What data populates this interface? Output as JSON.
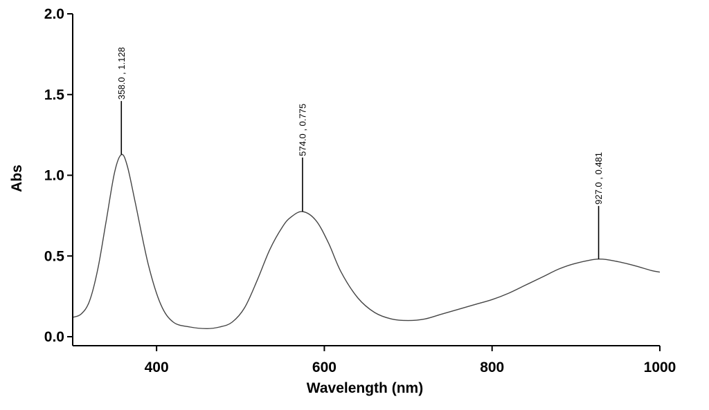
{
  "chart_data": {
    "type": "line",
    "xlabel": "Wavelength (nm)",
    "ylabel": "Abs",
    "xlim": [
      300,
      1000
    ],
    "ylim": [
      0.0,
      2.0
    ],
    "x_ticks": [
      "400",
      "600",
      "800",
      "1000"
    ],
    "y_ticks": [
      "0.0",
      "0.5",
      "1.0",
      "1.5",
      "2.0"
    ],
    "grid": false,
    "series": [
      {
        "x": [
          300,
          310,
          320,
          330,
          340,
          350,
          358,
          365,
          375,
          390,
          405,
          420,
          440,
          460,
          475,
          490,
          505,
          520,
          535,
          550,
          560,
          574,
          590,
          605,
          620,
          640,
          660,
          680,
          700,
          720,
          740,
          760,
          780,
          800,
          820,
          840,
          860,
          880,
          900,
          927,
          950,
          970,
          990,
          1000
        ],
        "y": [
          0.12,
          0.14,
          0.22,
          0.42,
          0.72,
          1.02,
          1.128,
          1.06,
          0.82,
          0.45,
          0.2,
          0.09,
          0.06,
          0.05,
          0.06,
          0.09,
          0.18,
          0.35,
          0.54,
          0.68,
          0.74,
          0.775,
          0.72,
          0.58,
          0.4,
          0.24,
          0.15,
          0.11,
          0.1,
          0.11,
          0.14,
          0.17,
          0.2,
          0.23,
          0.27,
          0.32,
          0.37,
          0.42,
          0.455,
          0.481,
          0.465,
          0.44,
          0.41,
          0.4
        ]
      }
    ],
    "annotations": [
      {
        "text": "358.0 , 1.128",
        "x": 358,
        "y": 1.128,
        "line_top": 1.46
      },
      {
        "text": "574.0 , 0.775",
        "x": 574,
        "y": 0.775,
        "line_top": 1.11
      },
      {
        "text": "927.0 , 0.481",
        "x": 927,
        "y": 0.481,
        "line_top": 0.81
      }
    ]
  }
}
